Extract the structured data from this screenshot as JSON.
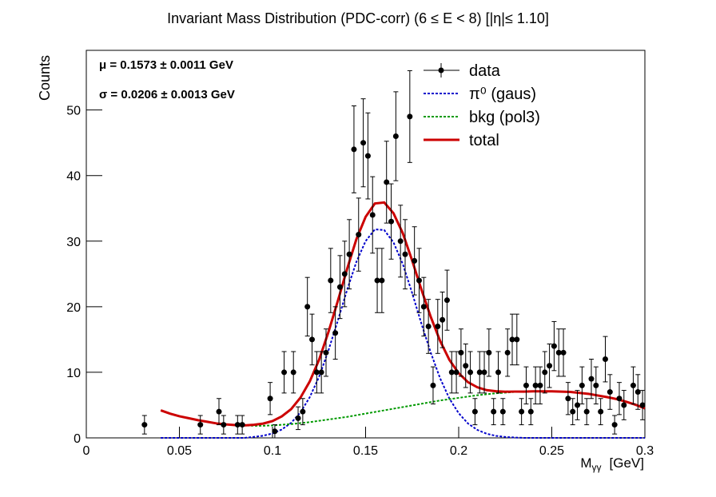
{
  "chart_data": {
    "type": "scatter",
    "title": "Invariant Mass Distribution (PDC-corr)   (6 ≤ E < 8)   [|η|≤ 1.10]",
    "y_label": "Counts",
    "x_label": "M",
    "x_label_sub": "γγ",
    "x_label_unit": "[GeV]",
    "annotations": [
      "μ = 0.1573 ± 0.0011 GeV",
      "σ = 0.0206 ± 0.0013 GeV"
    ],
    "xlim": [
      0,
      0.3
    ],
    "ylim": [
      0,
      59.1
    ],
    "xticks": [
      0,
      0.05,
      0.1,
      0.15,
      0.2,
      0.25,
      0.3
    ],
    "yticks": [
      0,
      10,
      20,
      30,
      40,
      50
    ],
    "legend": "top-right",
    "series": [
      {
        "name": "data",
        "color": "#000000",
        "x": [
          0.03125,
          0.06125,
          0.07125,
          0.07375,
          0.08125,
          0.08375,
          0.09875,
          0.10125,
          0.10625,
          0.11125,
          0.11375,
          0.11625,
          0.11875,
          0.12125,
          0.12375,
          0.12625,
          0.12875,
          0.13125,
          0.13375,
          0.13625,
          0.13875,
          0.14125,
          0.14375,
          0.14625,
          0.14875,
          0.15125,
          0.15375,
          0.15625,
          0.15875,
          0.16125,
          0.16375,
          0.16625,
          0.16875,
          0.17125,
          0.17375,
          0.17625,
          0.17875,
          0.18125,
          0.18375,
          0.18625,
          0.18875,
          0.19125,
          0.19375,
          0.19625,
          0.19875,
          0.20125,
          0.20375,
          0.20625,
          0.20875,
          0.21125,
          0.21375,
          0.21625,
          0.21875,
          0.22125,
          0.22375,
          0.22625,
          0.22875,
          0.23125,
          0.23375,
          0.23625,
          0.23875,
          0.24125,
          0.24375,
          0.24625,
          0.24875,
          0.25125,
          0.25375,
          0.25625,
          0.25875,
          0.26125,
          0.26375,
          0.26625,
          0.26875,
          0.27125,
          0.27375,
          0.27625,
          0.27875,
          0.28125,
          0.28375,
          0.28625,
          0.28875,
          0.29375,
          0.29625,
          0.29875
        ],
        "values": [
          2,
          2,
          4,
          2,
          2,
          2,
          6,
          1,
          10,
          10,
          3,
          4,
          20,
          15,
          10,
          10,
          13,
          24,
          16,
          23,
          25,
          28,
          44,
          31,
          45,
          43,
          34,
          24,
          24,
          39,
          33,
          46,
          30,
          28,
          49,
          27,
          24,
          20,
          17,
          8,
          17,
          18,
          21,
          10,
          10,
          13,
          11,
          10,
          4,
          10,
          10,
          13,
          4,
          10,
          4,
          13,
          15,
          15,
          4,
          8,
          4,
          8,
          8,
          10,
          11,
          14,
          13,
          13,
          6,
          4,
          5,
          8,
          4,
          9,
          8,
          4,
          12,
          7,
          2,
          6,
          5,
          8,
          7,
          5
        ],
        "errors": [
          1.41,
          1.41,
          2,
          1.41,
          1.41,
          1.41,
          2.45,
          1,
          3.16,
          3.16,
          1.73,
          2,
          4.47,
          3.87,
          3.16,
          3.16,
          3.61,
          4.9,
          4,
          4.8,
          5,
          5.29,
          6.63,
          5.57,
          6.71,
          6.56,
          5.83,
          4.9,
          4.9,
          6.24,
          5.74,
          6.78,
          5.48,
          5.29,
          7,
          5.2,
          4.9,
          4.47,
          4.12,
          2.83,
          4.12,
          4.24,
          4.58,
          3.16,
          3.16,
          3.61,
          3.32,
          3.16,
          2,
          3.16,
          3.16,
          3.61,
          2,
          3.16,
          2,
          3.61,
          3.87,
          3.87,
          2,
          2.83,
          2,
          2.83,
          2.83,
          3.16,
          3.32,
          3.74,
          3.61,
          3.61,
          2.45,
          2,
          2.24,
          2.83,
          2,
          3,
          2.83,
          2,
          3.46,
          2.65,
          1.41,
          2.45,
          2.24,
          2.83,
          2.65,
          2.24
        ]
      }
    ],
    "curves": {
      "x": [
        0.04,
        0.045,
        0.05,
        0.055,
        0.06,
        0.065,
        0.07,
        0.075,
        0.08,
        0.085,
        0.09,
        0.095,
        0.1,
        0.105,
        0.11,
        0.115,
        0.12,
        0.125,
        0.13,
        0.135,
        0.14,
        0.145,
        0.15,
        0.155,
        0.16,
        0.165,
        0.17,
        0.175,
        0.18,
        0.185,
        0.19,
        0.195,
        0.2,
        0.205,
        0.21,
        0.215,
        0.22,
        0.225,
        0.23,
        0.235,
        0.24,
        0.245,
        0.25,
        0.255,
        0.26,
        0.265,
        0.27,
        0.275,
        0.28,
        0.285,
        0.29,
        0.295,
        0.3
      ],
      "series": [
        {
          "name": "π⁰ (gaus)",
          "color": "#0000cc",
          "style": "dotted",
          "values": [
            0,
            0,
            0,
            0,
            0,
            0,
            0,
            0,
            0,
            0,
            0.15,
            0.33,
            0.67,
            1.28,
            2.28,
            3.88,
            6.2,
            9.3,
            13.3,
            17.8,
            22.5,
            26.8,
            30,
            31.8,
            31.7,
            29.8,
            26.5,
            22.1,
            17.4,
            13,
            9.1,
            6,
            3.76,
            2.19,
            1.22,
            0.63,
            0.31,
            0.14,
            0.06,
            0,
            0,
            0,
            0,
            0,
            0,
            0,
            0,
            0,
            0,
            0,
            0,
            0,
            0
          ]
        },
        {
          "name": "bkg (pol3)",
          "color": "#009900",
          "style": "dotted",
          "values": [
            4.2,
            3.7,
            3.3,
            3,
            2.7,
            2.45,
            2.2,
            2.05,
            1.95,
            1.9,
            1.85,
            1.85,
            1.9,
            2,
            2.1,
            2.25,
            2.4,
            2.6,
            2.8,
            3,
            3.2,
            3.45,
            3.7,
            3.95,
            4.2,
            4.45,
            4.7,
            4.95,
            5.2,
            5.45,
            5.7,
            5.9,
            6.1,
            6.3,
            6.5,
            6.65,
            6.8,
            6.9,
            7,
            7.05,
            7.1,
            7.1,
            7.1,
            7.05,
            7,
            6.85,
            6.7,
            6.45,
            6.2,
            5.9,
            5.5,
            5.05,
            4.5
          ]
        },
        {
          "name": "total",
          "color": "#cc0000",
          "style": "solid",
          "values": [
            4.2,
            3.7,
            3.3,
            3,
            2.7,
            2.45,
            2.2,
            2.05,
            1.95,
            1.9,
            2,
            2.18,
            2.57,
            3.28,
            4.38,
            6.13,
            8.6,
            11.9,
            16.1,
            20.8,
            25.7,
            30.25,
            33.7,
            35.75,
            35.9,
            34.25,
            31.2,
            27.05,
            22.6,
            18.45,
            14.8,
            11.9,
            9.86,
            8.49,
            7.72,
            7.28,
            7.11,
            7.04,
            7.06,
            7.05,
            7.1,
            7.1,
            7.1,
            7.05,
            7,
            6.85,
            6.7,
            6.45,
            6.2,
            5.9,
            5.5,
            5.05,
            4.5
          ]
        }
      ]
    }
  }
}
